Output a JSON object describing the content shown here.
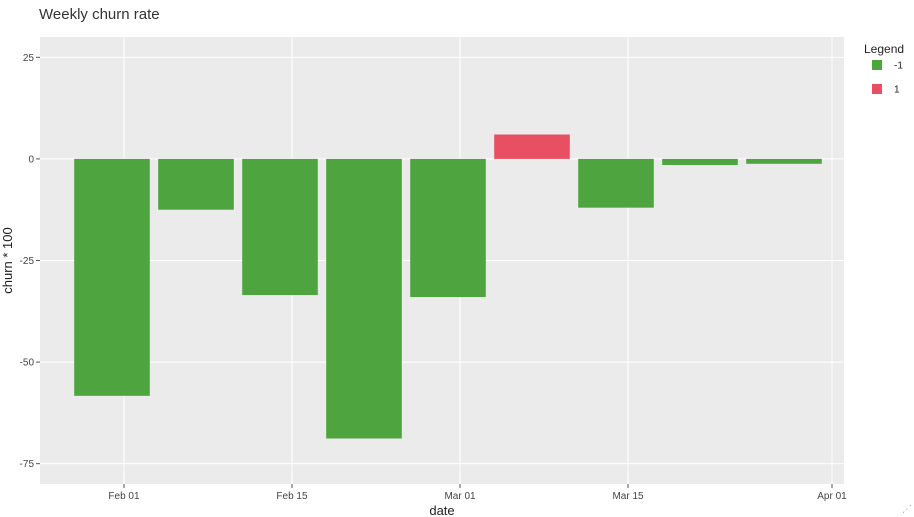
{
  "chart_data": {
    "type": "bar",
    "title": "Weekly churn rate",
    "xlabel": "date",
    "ylabel": "churn * 100",
    "x_type": "date",
    "xlim": [
      "2022-01-25",
      "2022-04-02"
    ],
    "ylim": [
      -80,
      30
    ],
    "x_ticks": [
      {
        "date": "2022-02-01",
        "label": "Feb 01"
      },
      {
        "date": "2022-02-15",
        "label": "Feb 15"
      },
      {
        "date": "2022-03-01",
        "label": "Mar 01"
      },
      {
        "date": "2022-03-15",
        "label": "Mar 15"
      },
      {
        "date": "2022-04-01",
        "label": "Apr 01"
      }
    ],
    "y_ticks": [
      25,
      0,
      -25,
      -50,
      -75
    ],
    "bars": [
      {
        "date": "2022-01-31",
        "value": -58.3,
        "group": "-1"
      },
      {
        "date": "2022-02-07",
        "value": -12.5,
        "group": "-1"
      },
      {
        "date": "2022-02-14",
        "value": -33.5,
        "group": "-1"
      },
      {
        "date": "2022-02-21",
        "value": -68.8,
        "group": "-1"
      },
      {
        "date": "2022-02-28",
        "value": -34.0,
        "group": "-1"
      },
      {
        "date": "2022-03-07",
        "value": 6.0,
        "group": "1"
      },
      {
        "date": "2022-03-14",
        "value": -12.0,
        "group": "-1"
      },
      {
        "date": "2022-03-21",
        "value": -1.5,
        "group": "-1"
      },
      {
        "date": "2022-03-28",
        "value": -1.2,
        "group": "-1"
      }
    ],
    "legend": {
      "title": "Legend",
      "placement": "right",
      "entries": [
        {
          "label": "-1",
          "color": "#4ea43f"
        },
        {
          "label": "1",
          "color": "#e84f63"
        }
      ]
    },
    "grid": true,
    "panel_color": "#ebebeb",
    "grid_color": "#ffffff"
  }
}
